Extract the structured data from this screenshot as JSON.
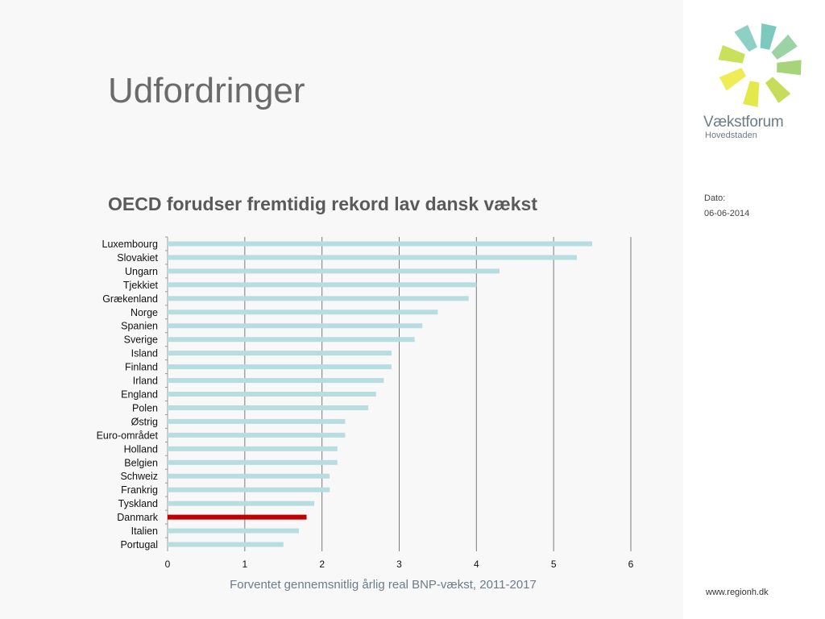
{
  "slide": {
    "title": "Udfordringer"
  },
  "sidebar": {
    "brand_name": "Vækstforum",
    "brand_sub": "Hovedstaden",
    "date_label": "Dato:",
    "date_value": "06-06-2014",
    "footer_url": "www.regionh.dk"
  },
  "colors": {
    "bar_default": "#b8dde0",
    "bar_highlight": "#c00000",
    "gridline": "#7a7a7a"
  },
  "chart_data": {
    "type": "bar",
    "orientation": "horizontal",
    "title": "OECD forudser fremtidig rekord lav dansk vækst",
    "xlabel": "Forventet gennemsnitlig årlig real BNP-vækst,  2011-2017",
    "ylabel": "",
    "xlim": [
      0,
      6
    ],
    "xticks": [
      0,
      1,
      2,
      3,
      4,
      5,
      6
    ],
    "grid": "vertical",
    "highlight": "Danmark",
    "categories": [
      "Luxembourg",
      "Slovakiet",
      "Ungarn",
      "Tjekkiet",
      "Grækenland",
      "Norge",
      "Spanien",
      "Sverige",
      "Island",
      "Finland",
      "Irland",
      "England",
      "Polen",
      "Østrig",
      "Euro-området",
      "Holland",
      "Belgien",
      "Schweiz",
      "Frankrig",
      "Tyskland",
      "Danmark",
      "Italien",
      "Portugal"
    ],
    "values": [
      5.5,
      5.3,
      4.3,
      4.0,
      3.9,
      3.5,
      3.3,
      3.2,
      2.9,
      2.9,
      2.8,
      2.7,
      2.6,
      2.3,
      2.3,
      2.2,
      2.2,
      2.1,
      2.1,
      1.9,
      1.8,
      1.7,
      1.5
    ]
  }
}
